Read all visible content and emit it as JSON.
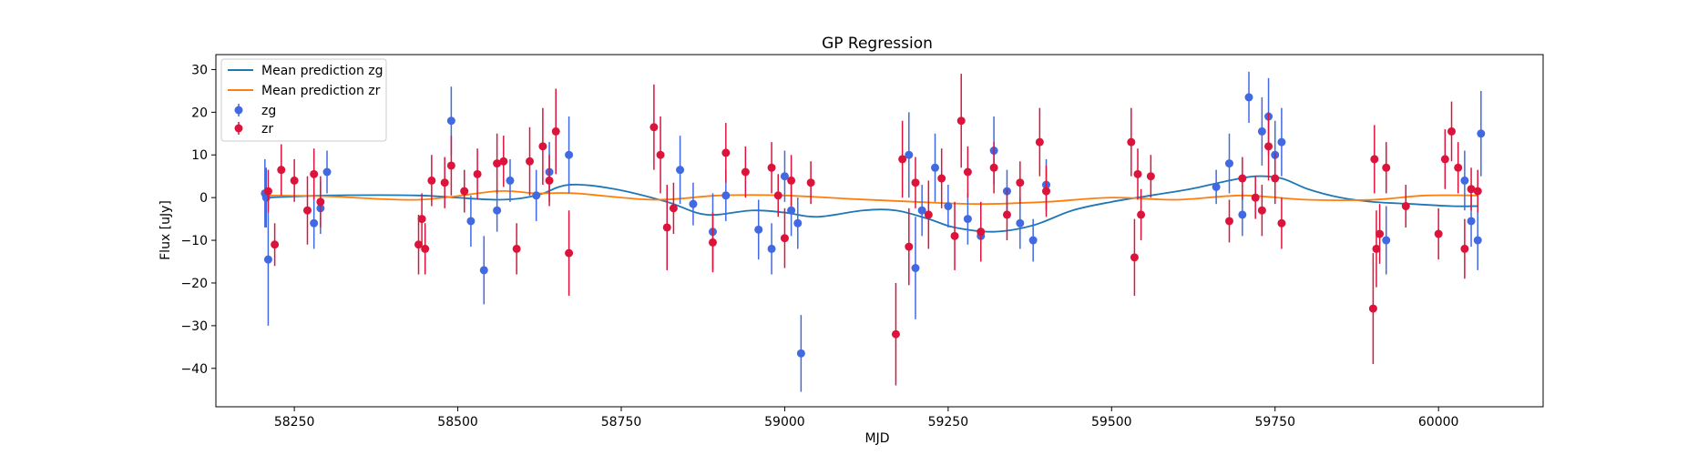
{
  "chart_data": {
    "type": "scatter",
    "title": "GP Regression",
    "xlabel": "MJD",
    "ylabel": "Flux [uJy]",
    "xlim": [
      58130,
      60160
    ],
    "ylim": [
      -49,
      33.5
    ],
    "xticks": [
      58250,
      58500,
      58750,
      59000,
      59250,
      59500,
      59750,
      60000
    ],
    "yticks": [
      -40,
      -30,
      -20,
      -10,
      0,
      10,
      20,
      30
    ],
    "grid": false,
    "legend_position": "upper-left",
    "legend": [
      {
        "label": "Mean prediction zg",
        "kind": "line",
        "color": "#1f77b4"
      },
      {
        "label": "Mean prediction zr",
        "kind": "line",
        "color": "#ff7f0e"
      },
      {
        "label": "zg",
        "kind": "errorbar",
        "color": "#4169e1"
      },
      {
        "label": "zr",
        "kind": "errorbar",
        "color": "#dc143c"
      }
    ],
    "lines": [
      {
        "name": "Mean prediction zg",
        "color": "#1f77b4",
        "x": [
          58210,
          58300,
          58440,
          58560,
          58620,
          58670,
          58740,
          58820,
          58880,
          58950,
          59000,
          59050,
          59120,
          59170,
          59220,
          59260,
          59320,
          59380,
          59440,
          59500,
          59560,
          59620,
          59680,
          59720,
          59760,
          59800,
          59850,
          59900,
          59960,
          60020,
          60060
        ],
        "y": [
          0,
          0.5,
          0.5,
          -0.5,
          0.5,
          3,
          2,
          -1,
          -4,
          -3,
          -3.5,
          -4.5,
          -3,
          -3,
          -5,
          -7,
          -8,
          -6.5,
          -3,
          -1,
          0.5,
          2,
          4,
          5,
          4.5,
          2,
          0,
          -1,
          -1.5,
          -2,
          -2
        ]
      },
      {
        "name": "Mean prediction zr",
        "color": "#ff7f0e",
        "x": [
          58210,
          58300,
          58440,
          58560,
          58620,
          58680,
          58800,
          58900,
          59000,
          59100,
          59200,
          59300,
          59400,
          59500,
          59600,
          59700,
          59800,
          59900,
          59980,
          60060
        ],
        "y": [
          0.5,
          0.3,
          -0.5,
          1.5,
          1,
          1,
          -0.5,
          0.5,
          0.5,
          -0.3,
          -1,
          -1.5,
          -1,
          0,
          -0.5,
          0.5,
          -0.5,
          -0.5,
          0.5,
          0.5
        ]
      }
    ],
    "series": [
      {
        "name": "zg",
        "color": "#4169e1",
        "points": [
          [
            58205,
            1,
            8
          ],
          [
            58207,
            0,
            7
          ],
          [
            58210,
            -14.5,
            15.5
          ],
          [
            58280,
            -6,
            6
          ],
          [
            58290,
            -2.5,
            6
          ],
          [
            58300,
            6,
            5
          ],
          [
            58490,
            18,
            8
          ],
          [
            58520,
            -5.5,
            6
          ],
          [
            58540,
            -17,
            8
          ],
          [
            58560,
            -3,
            5
          ],
          [
            58580,
            4,
            5
          ],
          [
            58620,
            0.5,
            6
          ],
          [
            58640,
            6,
            7
          ],
          [
            58670,
            10,
            9
          ],
          [
            58840,
            6.5,
            8
          ],
          [
            58860,
            -1.5,
            5
          ],
          [
            58890,
            -8,
            9
          ],
          [
            58910,
            0.5,
            6
          ],
          [
            58960,
            -7.5,
            7
          ],
          [
            58980,
            -12,
            6
          ],
          [
            59000,
            5,
            6
          ],
          [
            59010,
            -3,
            6
          ],
          [
            59020,
            -6,
            6
          ],
          [
            59025,
            -36.5,
            9
          ],
          [
            59190,
            10,
            10
          ],
          [
            59200,
            -16.5,
            12
          ],
          [
            59210,
            -3,
            6
          ],
          [
            59230,
            7,
            8
          ],
          [
            59250,
            -2,
            5
          ],
          [
            59280,
            -5,
            6
          ],
          [
            59300,
            -9,
            6
          ],
          [
            59320,
            11,
            8
          ],
          [
            59340,
            1.5,
            5
          ],
          [
            59360,
            -6,
            6
          ],
          [
            59380,
            -10,
            5
          ],
          [
            59400,
            3,
            6
          ],
          [
            59660,
            2.5,
            4
          ],
          [
            59680,
            8,
            7
          ],
          [
            59700,
            -4,
            5
          ],
          [
            59710,
            23.5,
            6
          ],
          [
            59730,
            15.5,
            8
          ],
          [
            59740,
            19,
            9
          ],
          [
            59750,
            10,
            8
          ],
          [
            59760,
            13,
            8
          ],
          [
            59920,
            -10,
            8
          ],
          [
            60040,
            4,
            7
          ],
          [
            60050,
            -5.5,
            6
          ],
          [
            60060,
            -10,
            7
          ],
          [
            60065,
            15,
            10
          ]
        ]
      },
      {
        "name": "zr",
        "color": "#dc143c",
        "points": [
          [
            58210,
            1.5,
            5
          ],
          [
            58220,
            -11,
            5
          ],
          [
            58230,
            6.5,
            6
          ],
          [
            58250,
            4,
            5
          ],
          [
            58270,
            -3,
            8
          ],
          [
            58280,
            5.5,
            6
          ],
          [
            58290,
            -1,
            6
          ],
          [
            58440,
            -11,
            7
          ],
          [
            58445,
            -5,
            6
          ],
          [
            58450,
            -12,
            6
          ],
          [
            58460,
            4,
            6
          ],
          [
            58480,
            3.5,
            6
          ],
          [
            58490,
            7.5,
            7
          ],
          [
            58510,
            1.5,
            5
          ],
          [
            58530,
            5.5,
            6
          ],
          [
            58560,
            8,
            7
          ],
          [
            58570,
            8.5,
            6
          ],
          [
            58590,
            -12,
            6
          ],
          [
            58610,
            8.5,
            8
          ],
          [
            58630,
            12,
            9
          ],
          [
            58640,
            4,
            6
          ],
          [
            58650,
            15.5,
            10
          ],
          [
            58670,
            -13,
            10
          ],
          [
            58800,
            16.5,
            10
          ],
          [
            58810,
            10,
            9
          ],
          [
            58820,
            -7,
            10
          ],
          [
            58830,
            -2.5,
            6
          ],
          [
            58890,
            -10.5,
            7
          ],
          [
            58910,
            10.5,
            7
          ],
          [
            58940,
            6,
            6
          ],
          [
            58980,
            7,
            6
          ],
          [
            58990,
            0.5,
            5
          ],
          [
            59000,
            -9.5,
            7
          ],
          [
            59010,
            4,
            6
          ],
          [
            59040,
            3.5,
            5
          ],
          [
            59170,
            -32,
            12
          ],
          [
            59180,
            9,
            9
          ],
          [
            59190,
            -11.5,
            9
          ],
          [
            59200,
            3.5,
            6
          ],
          [
            59220,
            -4,
            8
          ],
          [
            59240,
            4.5,
            7
          ],
          [
            59260,
            -9,
            8
          ],
          [
            59270,
            18,
            11
          ],
          [
            59280,
            6,
            6
          ],
          [
            59300,
            -8,
            7
          ],
          [
            59320,
            7,
            6
          ],
          [
            59340,
            -4,
            6
          ],
          [
            59360,
            3.5,
            5
          ],
          [
            59390,
            13,
            8
          ],
          [
            59400,
            1.5,
            6
          ],
          [
            59530,
            13,
            8
          ],
          [
            59535,
            -14,
            9
          ],
          [
            59540,
            5.5,
            6
          ],
          [
            59545,
            -4,
            6
          ],
          [
            59560,
            5,
            5
          ],
          [
            59680,
            -5.5,
            5
          ],
          [
            59700,
            4.5,
            5
          ],
          [
            59720,
            0,
            5
          ],
          [
            59730,
            -3,
            6
          ],
          [
            59740,
            12,
            8
          ],
          [
            59750,
            4.5,
            6
          ],
          [
            59760,
            -6,
            6
          ],
          [
            59900,
            -26,
            13
          ],
          [
            59902,
            9,
            8
          ],
          [
            59905,
            -12,
            9
          ],
          [
            59910,
            -8.5,
            7
          ],
          [
            59920,
            7,
            6
          ],
          [
            59950,
            -2,
            5
          ],
          [
            60000,
            -8.5,
            6
          ],
          [
            60010,
            9,
            7
          ],
          [
            60020,
            15.5,
            7
          ],
          [
            60030,
            7,
            6
          ],
          [
            60040,
            -12,
            7
          ],
          [
            60050,
            2,
            5
          ],
          [
            60060,
            1.5,
            5
          ]
        ]
      }
    ]
  }
}
